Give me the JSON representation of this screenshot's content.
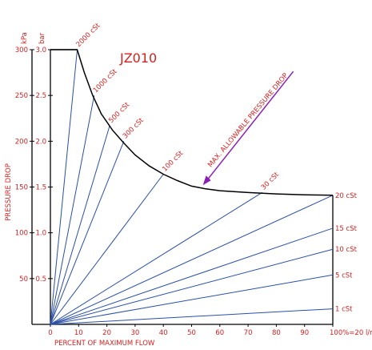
{
  "chart_data": {
    "type": "line",
    "title": "JZ010",
    "xlabel": "PERCENT OF MAXIMUM FLOW",
    "ylabel": "PRESSURE DROP",
    "ylabel_units": [
      "kPa",
      "bar"
    ],
    "xlim": [
      0,
      100
    ],
    "ylim_kpa": [
      0,
      300
    ],
    "ylim_bar": [
      0,
      3.0
    ],
    "x_ticks": [
      "0",
      "10",
      "20",
      "30",
      "40",
      "50",
      "60",
      "70",
      "80",
      "90",
      "100%=20 l/min"
    ],
    "y_ticks_kpa": [
      "50",
      "100",
      "150",
      "200",
      "250",
      "300"
    ],
    "y_ticks_bar": [
      "0.5",
      "1.0",
      "1.5",
      "2.0",
      "2.5",
      "3.0"
    ],
    "series": [
      {
        "name": "2000 cSt",
        "x": [
          0,
          9.5
        ],
        "y": [
          0,
          300
        ]
      },
      {
        "name": "1000 cSt",
        "x": [
          0,
          15.5
        ],
        "y": [
          0,
          250
        ]
      },
      {
        "name": "500 cSt",
        "x": [
          0,
          21
        ],
        "y": [
          0,
          217
        ]
      },
      {
        "name": "300 cSt",
        "x": [
          0,
          26
        ],
        "y": [
          0,
          200
        ]
      },
      {
        "name": "100 cSt",
        "x": [
          0,
          40
        ],
        "y": [
          0,
          164
        ]
      },
      {
        "name": "30 cSt",
        "x": [
          0,
          75
        ],
        "y": [
          0,
          144
        ]
      },
      {
        "name": "20 cSt",
        "x": [
          0,
          100
        ],
        "y": [
          0,
          141
        ]
      },
      {
        "name": "15 cSt",
        "x": [
          0,
          100
        ],
        "y": [
          0,
          105
        ]
      },
      {
        "name": "10 cSt",
        "x": [
          0,
          100
        ],
        "y": [
          0,
          82
        ]
      },
      {
        "name": "5 cSt",
        "x": [
          0,
          100
        ],
        "y": [
          0,
          54
        ]
      },
      {
        "name": "1 cSt",
        "x": [
          0,
          100
        ],
        "y": [
          0,
          17
        ]
      }
    ],
    "limit_curve": {
      "x": [
        0,
        9.5,
        12,
        15,
        18,
        22,
        26,
        30,
        35,
        40,
        45,
        50,
        55,
        60,
        70,
        80,
        90,
        100
      ],
      "y": [
        300,
        300,
        275,
        250,
        230,
        212,
        198,
        185,
        173,
        164,
        157,
        151,
        148,
        146,
        144,
        142.5,
        141.5,
        141
      ]
    },
    "annotations": [
      {
        "text": "MAX. ALLOWABLE PRESSURE DROP",
        "x": 54,
        "y": 152,
        "arrow": true
      }
    ],
    "grid": false,
    "legend": "none"
  }
}
